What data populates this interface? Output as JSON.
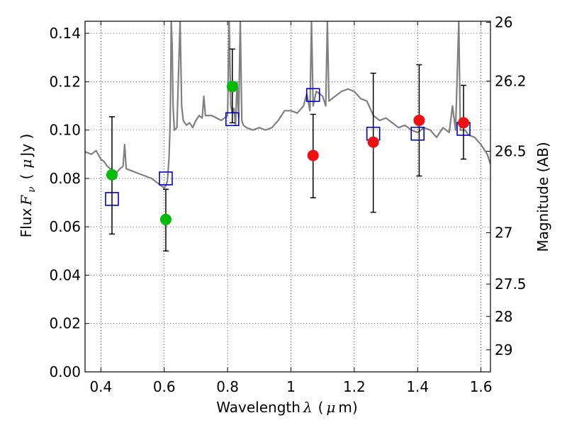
{
  "chart_data": {
    "type": "scatter",
    "title": "",
    "xlabel": {
      "text": "Wavelength",
      "symbol": "λ",
      "unit_open": "(",
      "unit_mu": "μ",
      "unit_rest": "m)"
    },
    "ylabel": {
      "text": "Flux",
      "symbol": "F",
      "subscript": "ν",
      "unit_open": "(",
      "unit_mu": "μ",
      "unit_rest": "Jy )"
    },
    "y2label": "Magnitude (AB)",
    "xlim": [
      0.35,
      1.63
    ],
    "ylim": [
      0,
      0.145
    ],
    "grid": true,
    "xticks": [
      {
        "value": 0.4,
        "label": "0.4"
      },
      {
        "value": 0.6,
        "label": "0.6"
      },
      {
        "value": 0.8,
        "label": "0.8"
      },
      {
        "value": 1.0,
        "label": "1"
      },
      {
        "value": 1.2,
        "label": "1.2"
      },
      {
        "value": 1.4,
        "label": "1.4"
      },
      {
        "value": 1.6,
        "label": "1.6"
      }
    ],
    "yticks": [
      {
        "value": 0.0,
        "label": "0.00"
      },
      {
        "value": 0.02,
        "label": "0.02"
      },
      {
        "value": 0.04,
        "label": "0.04"
      },
      {
        "value": 0.06,
        "label": "0.06"
      },
      {
        "value": 0.08,
        "label": "0.08"
      },
      {
        "value": 0.1,
        "label": "0.10"
      },
      {
        "value": 0.12,
        "label": "0.12"
      },
      {
        "value": 0.14,
        "label": "0.14"
      }
    ],
    "y2ticks": [
      {
        "mag": 26.0,
        "label": "26"
      },
      {
        "mag": 26.2,
        "label": "26.2"
      },
      {
        "mag": 26.5,
        "label": "26.5"
      },
      {
        "mag": 27.0,
        "label": "27"
      },
      {
        "mag": 27.5,
        "label": "27.5"
      },
      {
        "mag": 28.0,
        "label": "28"
      },
      {
        "mag": 29.0,
        "label": "29"
      }
    ],
    "model_spectrum": {
      "color": "#808080",
      "points": [
        [
          0.35,
          0.091
        ],
        [
          0.37,
          0.09
        ],
        [
          0.385,
          0.0915
        ],
        [
          0.4,
          0.088
        ],
        [
          0.41,
          0.087
        ],
        [
          0.42,
          0.085
        ],
        [
          0.43,
          0.084
        ],
        [
          0.44,
          0.083
        ],
        [
          0.45,
          0.0825
        ],
        [
          0.46,
          0.084
        ],
        [
          0.47,
          0.085
        ],
        [
          0.475,
          0.094
        ],
        [
          0.48,
          0.084
        ],
        [
          0.5,
          0.083
        ],
        [
          0.52,
          0.082
        ],
        [
          0.54,
          0.081
        ],
        [
          0.56,
          0.08
        ],
        [
          0.58,
          0.078
        ],
        [
          0.59,
          0.077
        ],
        [
          0.6,
          0.076
        ],
        [
          0.605,
          0.077
        ],
        [
          0.61,
          0.079
        ],
        [
          0.615,
          0.088
        ],
        [
          0.618,
          0.1
        ],
        [
          0.62,
          0.115
        ],
        [
          0.622,
          0.145
        ],
        [
          0.625,
          0.135
        ],
        [
          0.628,
          0.11
        ],
        [
          0.632,
          0.1
        ],
        [
          0.64,
          0.101
        ],
        [
          0.65,
          0.145
        ],
        [
          0.655,
          0.11
        ],
        [
          0.66,
          0.104
        ],
        [
          0.67,
          0.102
        ],
        [
          0.68,
          0.103
        ],
        [
          0.69,
          0.101
        ],
        [
          0.7,
          0.104
        ],
        [
          0.71,
          0.106
        ],
        [
          0.72,
          0.105
        ],
        [
          0.725,
          0.114
        ],
        [
          0.73,
          0.106
        ],
        [
          0.75,
          0.106
        ],
        [
          0.78,
          0.104
        ],
        [
          0.8,
          0.106
        ],
        [
          0.805,
          0.145
        ],
        [
          0.81,
          0.11
        ],
        [
          0.815,
          0.107
        ],
        [
          0.82,
          0.109
        ],
        [
          0.825,
          0.102
        ],
        [
          0.83,
          0.12
        ],
        [
          0.835,
          0.105
        ],
        [
          0.84,
          0.145
        ],
        [
          0.845,
          0.104
        ],
        [
          0.85,
          0.102
        ],
        [
          0.86,
          0.101
        ],
        [
          0.88,
          0.1
        ],
        [
          0.9,
          0.101
        ],
        [
          0.92,
          0.1
        ],
        [
          0.94,
          0.101
        ],
        [
          0.96,
          0.104
        ],
        [
          0.98,
          0.108
        ],
        [
          1.0,
          0.108
        ],
        [
          1.02,
          0.107
        ],
        [
          1.04,
          0.11
        ],
        [
          1.05,
          0.115
        ],
        [
          1.06,
          0.108
        ],
        [
          1.065,
          0.145
        ],
        [
          1.07,
          0.11
        ],
        [
          1.08,
          0.116
        ],
        [
          1.1,
          0.114
        ],
        [
          1.11,
          0.11
        ],
        [
          1.115,
          0.145
        ],
        [
          1.12,
          0.112
        ],
        [
          1.14,
          0.114
        ],
        [
          1.16,
          0.116
        ],
        [
          1.18,
          0.117
        ],
        [
          1.2,
          0.116
        ],
        [
          1.22,
          0.113
        ],
        [
          1.24,
          0.112
        ],
        [
          1.26,
          0.106
        ],
        [
          1.28,
          0.104
        ],
        [
          1.3,
          0.105
        ],
        [
          1.32,
          0.103
        ],
        [
          1.34,
          0.101
        ],
        [
          1.36,
          0.102
        ],
        [
          1.38,
          0.1
        ],
        [
          1.4,
          0.099
        ],
        [
          1.42,
          0.101
        ],
        [
          1.44,
          0.1
        ],
        [
          1.46,
          0.097
        ],
        [
          1.48,
          0.101
        ],
        [
          1.5,
          0.099
        ],
        [
          1.51,
          0.11
        ],
        [
          1.52,
          0.1
        ],
        [
          1.53,
          0.145
        ],
        [
          1.535,
          0.1
        ],
        [
          1.55,
          0.1
        ],
        [
          1.56,
          0.098
        ],
        [
          1.58,
          0.097
        ],
        [
          1.6,
          0.094
        ],
        [
          1.62,
          0.09
        ],
        [
          1.63,
          0.086
        ]
      ]
    },
    "series": [
      {
        "marker": "open-square",
        "color": "#0000cc",
        "points": [
          {
            "x": 0.435,
            "y": 0.0715
          },
          {
            "x": 0.605,
            "y": 0.08
          },
          {
            "x": 0.815,
            "y": 0.1045
          },
          {
            "x": 1.07,
            "y": 0.1145
          },
          {
            "x": 1.26,
            "y": 0.0985
          },
          {
            "x": 1.4,
            "y": 0.0985
          },
          {
            "x": 1.545,
            "y": 0.1005
          }
        ]
      },
      {
        "marker": "filled-circle",
        "color": "#00bb00",
        "points": [
          {
            "x": 0.435,
            "y": 0.0815,
            "yerr": [
              0.057,
              0.1055
            ]
          },
          {
            "x": 0.605,
            "y": 0.063,
            "yerr": [
              0.05,
              0.0755
            ]
          },
          {
            "x": 0.815,
            "y": 0.118,
            "yerr": [
              0.103,
              0.1335
            ]
          }
        ]
      },
      {
        "marker": "filled-circle",
        "color": "#ee1111",
        "points": [
          {
            "x": 1.07,
            "y": 0.0895,
            "yerr": [
              0.072,
              0.1065
            ]
          },
          {
            "x": 1.26,
            "y": 0.095,
            "yerr": [
              0.066,
              0.1235
            ]
          },
          {
            "x": 1.405,
            "y": 0.104,
            "yerr": [
              0.081,
              0.127
            ]
          },
          {
            "x": 1.545,
            "y": 0.103,
            "yerr": [
              0.088,
              0.1185
            ]
          }
        ]
      }
    ]
  }
}
